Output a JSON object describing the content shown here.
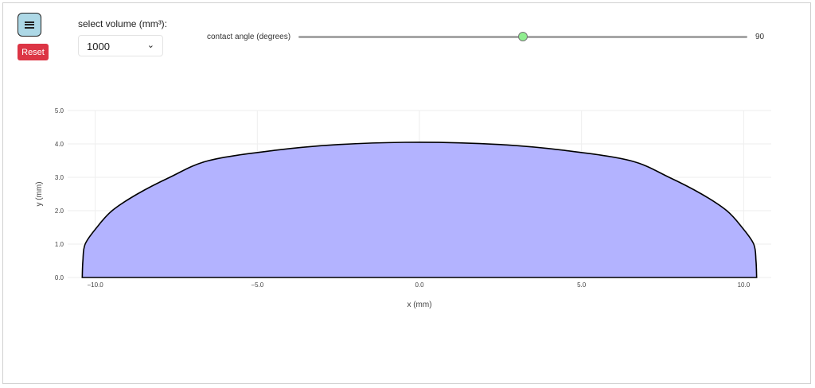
{
  "controls": {
    "reset_label": "Reset",
    "volume_label": "select volume (mm³):",
    "volume_value": "1000",
    "angle_label": "contact angle (degrees)",
    "angle_value": "90",
    "angle_fraction": 0.5,
    "thumb_color": "#90ee90",
    "reset_color": "#dc3545",
    "menu_icon": "hamburger-icon"
  },
  "chart_data": {
    "type": "area",
    "xlabel": "x (mm)",
    "ylabel": "y (mm)",
    "xlim": [
      -10.85,
      10.85
    ],
    "ylim": [
      0,
      5
    ],
    "xticks": [
      -10,
      -5,
      0,
      5,
      10
    ],
    "xtick_labels": [
      "−10.0",
      "−5.0",
      "0.0",
      "5.0",
      "10.0"
    ],
    "yticks": [
      0,
      1,
      2,
      3,
      4,
      5
    ],
    "ytick_labels": [
      "0.0",
      "1.0",
      "2.0",
      "3.0",
      "4.0",
      "5.0"
    ],
    "grid": true,
    "fill_color": "#b3b3ff",
    "line_color": "#000000",
    "series": [
      {
        "x": [
          -10.4,
          -10.38,
          -10.31,
          -9.95,
          -9.48,
          -8.7,
          -7.7,
          -6.5,
          -4.44,
          -2.5,
          0,
          2.5,
          4.44,
          6.5,
          7.7,
          8.7,
          9.48,
          9.95,
          10.31,
          10.38,
          10.4
        ],
        "y": [
          0,
          0.5,
          1.0,
          1.5,
          2.0,
          2.5,
          3.0,
          3.5,
          3.81,
          3.98,
          4.05,
          3.98,
          3.81,
          3.5,
          3.0,
          2.5,
          2.0,
          1.5,
          1.0,
          0.5,
          0
        ]
      }
    ]
  }
}
